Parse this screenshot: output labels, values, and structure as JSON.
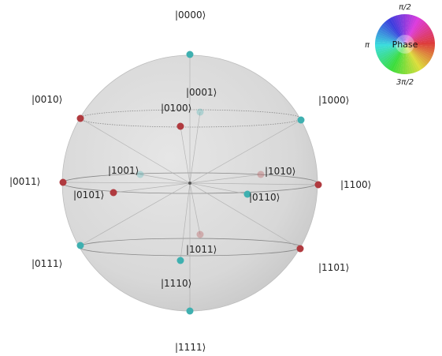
{
  "states": {
    "s0000": {
      "label": "|0000⟩",
      "color": "#3fb0b0"
    },
    "s0001": {
      "label": "|0001⟩",
      "color": "#3fb0b0"
    },
    "s0010": {
      "label": "|0010⟩",
      "color": "#b03a3f"
    },
    "s0100": {
      "label": "|0100⟩",
      "color": "#b03a3f"
    },
    "s1000": {
      "label": "|1000⟩",
      "color": "#3fb0b0"
    },
    "s0011": {
      "label": "|0011⟩",
      "color": "#b03a3f"
    },
    "s0101": {
      "label": "|0101⟩",
      "color": "#b03a3f"
    },
    "s1001": {
      "label": "|1001⟩",
      "color": "#3fb0b0"
    },
    "s0110": {
      "label": "|0110⟩",
      "color": "#3fb0b0"
    },
    "s1010": {
      "label": "|1010⟩",
      "color": "#b03a3f"
    },
    "s1100": {
      "label": "|1100⟩",
      "color": "#b03a3f"
    },
    "s0111": {
      "label": "|0111⟩",
      "color": "#3fb0b0"
    },
    "s1011": {
      "label": "|1011⟩",
      "color": "#b03a3f"
    },
    "s1101": {
      "label": "|1101⟩",
      "color": "#b03a3f"
    },
    "s1110": {
      "label": "|1110⟩",
      "color": "#3fb0b0"
    },
    "s1111": {
      "label": "|1111⟩",
      "color": "#3fb0b0"
    }
  },
  "phase_wheel": {
    "title": "Phase",
    "label_top": "π/2",
    "label_left": "π",
    "label_bottom": "3π/2"
  }
}
